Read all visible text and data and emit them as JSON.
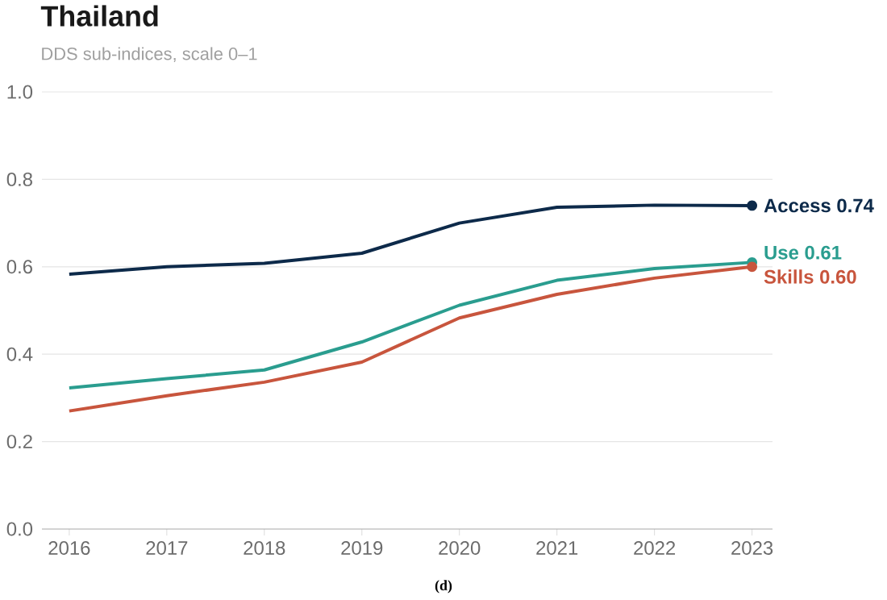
{
  "chart_data": {
    "type": "line",
    "title": "Thailand",
    "subtitle": "DDS sub-indices, scale 0–1",
    "annotations": [
      "(d)"
    ],
    "x": [
      2016,
      2017,
      2018,
      2019,
      2020,
      2021,
      2022,
      2023
    ],
    "series": [
      {
        "color": "#0d2a4a",
        "values": [
          0.583,
          0.6,
          0.608,
          0.631,
          0.7,
          0.736,
          0.741,
          0.74
        ],
        "value_labels": [
          null,
          null,
          null,
          null,
          null,
          null,
          null,
          "Access  0.74"
        ]
      },
      {
        "color": "#2a9d8f",
        "values": [
          0.323,
          0.344,
          0.364,
          0.428,
          0.512,
          0.569,
          0.596,
          0.61
        ],
        "value_labels": [
          null,
          null,
          null,
          null,
          null,
          null,
          null,
          "Use  0.61"
        ]
      },
      {
        "color": "#c8553d",
        "values": [
          0.27,
          0.305,
          0.336,
          0.382,
          0.483,
          0.537,
          0.574,
          0.6
        ],
        "value_labels": [
          null,
          null,
          null,
          null,
          null,
          null,
          null,
          "Skills  0.60"
        ]
      }
    ],
    "xlim": [
      2015.72,
      2023.21
    ],
    "ylim": [
      0,
      1.0
    ],
    "xticks": [
      2016,
      2017,
      2018,
      2019,
      2020,
      2021,
      2022,
      2023
    ],
    "yticks": [
      {
        "value": 0,
        "label": "0.0"
      },
      {
        "value": 0.2,
        "label": "0.2"
      },
      {
        "value": 0.4,
        "label": "0.4"
      },
      {
        "value": 0.6,
        "label": "0.6"
      },
      {
        "value": 0.8,
        "label": "0.8"
      },
      {
        "value": 1.0,
        "label": "1.0"
      }
    ],
    "grid": "y",
    "line_style": "solid"
  }
}
